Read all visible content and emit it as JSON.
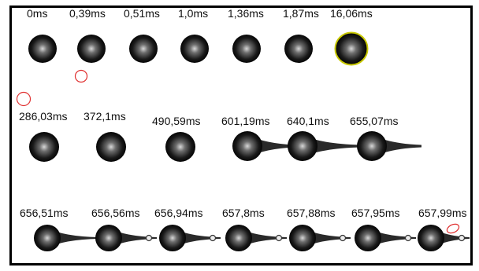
{
  "colors": {
    "drop_dark": "#1a1a1a",
    "drop_mid": "#6e6e6e",
    "highlight": "#d8d8d8",
    "tail": "#2a2a2a",
    "marker_red": "#e03030",
    "outline_yellow": "#c8c800",
    "frame": "#000000"
  },
  "rows": [
    {
      "frames": [
        {
          "time_label": "0ms",
          "shape": "sphere"
        },
        {
          "time_label": "0,39ms",
          "shape": "sphere"
        },
        {
          "time_label": "0,51ms",
          "shape": "sphere"
        },
        {
          "time_label": "1,0ms",
          "shape": "sphere"
        },
        {
          "time_label": "1,36ms",
          "shape": "sphere"
        },
        {
          "time_label": "1,87ms",
          "shape": "sphere"
        },
        {
          "time_label": "16,06ms",
          "shape": "sphere-outlined"
        }
      ]
    },
    {
      "frames": [
        {
          "time_label": "286,03ms",
          "shape": "sphere"
        },
        {
          "time_label": "372,1ms",
          "shape": "sphere"
        },
        {
          "time_label": "490,59ms",
          "shape": "sphere"
        },
        {
          "time_label": "601,19ms",
          "shape": "tail-short"
        },
        {
          "time_label": "640,1ms",
          "shape": "tail-long"
        },
        {
          "time_label": "655,07ms",
          "shape": "tail-long"
        }
      ]
    },
    {
      "frames": [
        {
          "time_label": "656,51ms",
          "shape": "tail-thin"
        },
        {
          "time_label": "656,56ms",
          "shape": "tail-bead"
        },
        {
          "time_label": "656,94ms",
          "shape": "tail-bead"
        },
        {
          "time_label": "657,8ms",
          "shape": "tail-bead"
        },
        {
          "time_label": "657,88ms",
          "shape": "tail-bead"
        },
        {
          "time_label": "657,95ms",
          "shape": "tail-bead"
        },
        {
          "time_label": "657,99ms",
          "shape": "tail-bead-marked"
        }
      ]
    }
  ],
  "markers": [
    {
      "kind": "red-circle-small"
    },
    {
      "kind": "red-circle-large"
    },
    {
      "kind": "red-ellipse"
    }
  ]
}
